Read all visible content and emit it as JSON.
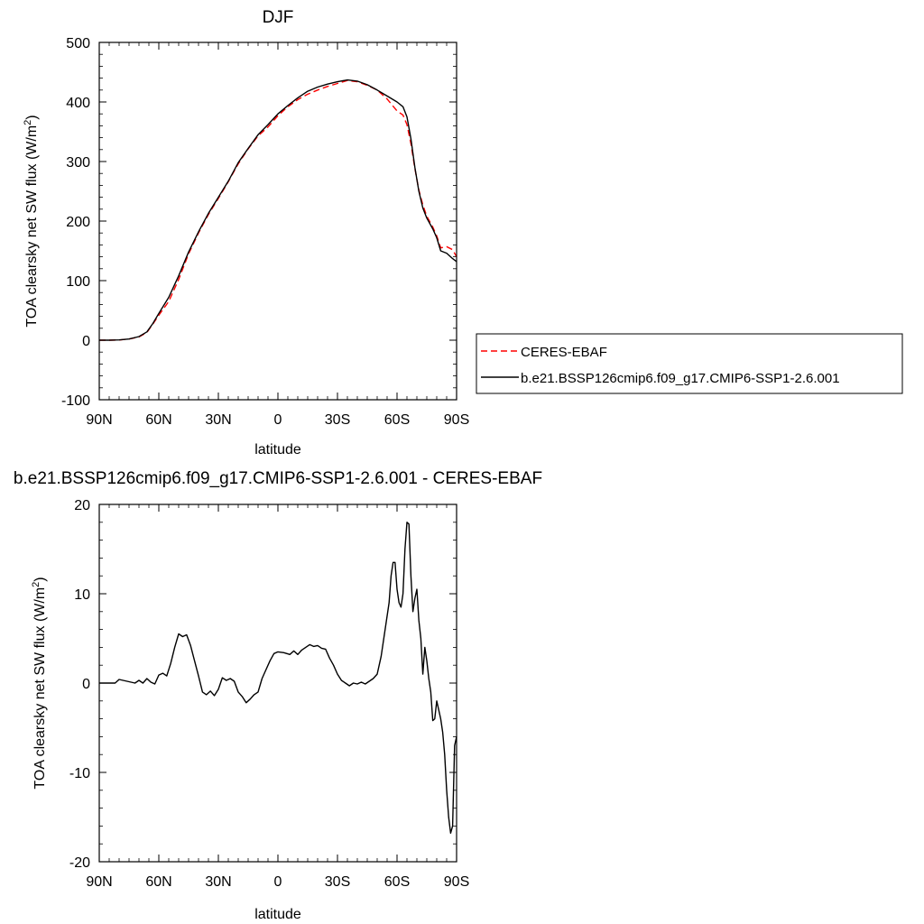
{
  "chart_data": [
    {
      "type": "line",
      "title": "DJF",
      "xlabel": "latitude",
      "ylabel": "TOA clearsky net SW flux (W/m",
      "ylabel_sup": "2",
      "ylabel_close": ")",
      "xlim": [
        90,
        -90
      ],
      "ylim": [
        -100,
        500
      ],
      "xticks": [
        {
          "value": 90,
          "label": "90N"
        },
        {
          "value": 60,
          "label": "60N"
        },
        {
          "value": 30,
          "label": "30N"
        },
        {
          "value": 0,
          "label": "0"
        },
        {
          "value": -30,
          "label": "30S"
        },
        {
          "value": -60,
          "label": "60S"
        },
        {
          "value": -90,
          "label": "90S"
        }
      ],
      "yticks": [
        -100,
        0,
        100,
        200,
        300,
        400,
        500
      ],
      "legend": {
        "placement": "right",
        "entries": [
          {
            "name": "CERES-EBAF",
            "color": "#ff0000",
            "dashed": true
          },
          {
            "name": "b.e21.BSSP126cmip6.f09_g17.CMIP6-SSP1-2.6.001",
            "color": "#000000",
            "dashed": false
          }
        ]
      },
      "series": [
        {
          "name": "b.e21.BSSP126cmip6.f09_g17.CMIP6-SSP1-2.6.001",
          "color": "#000000",
          "dashed": false,
          "points": [
            [
              90,
              0
            ],
            [
              85,
              0
            ],
            [
              80,
              0.5
            ],
            [
              75,
              2
            ],
            [
              70,
              6
            ],
            [
              66,
              14
            ],
            [
              63,
              28
            ],
            [
              60,
              45
            ],
            [
              55,
              72
            ],
            [
              50,
              108
            ],
            [
              45,
              148
            ],
            [
              40,
              182
            ],
            [
              35,
              213
            ],
            [
              30,
              240
            ],
            [
              25,
              267
            ],
            [
              20,
              298
            ],
            [
              15,
              322
            ],
            [
              10,
              345
            ],
            [
              5,
              362
            ],
            [
              0,
              380
            ],
            [
              -5,
              394
            ],
            [
              -10,
              407
            ],
            [
              -15,
              418
            ],
            [
              -20,
              425
            ],
            [
              -25,
              430
            ],
            [
              -30,
              434
            ],
            [
              -35,
              437
            ],
            [
              -40,
              435
            ],
            [
              -45,
              429
            ],
            [
              -50,
              420
            ],
            [
              -55,
              410
            ],
            [
              -60,
              400
            ],
            [
              -63,
              392
            ],
            [
              -65,
              375
            ],
            [
              -67,
              338
            ],
            [
              -69,
              290
            ],
            [
              -71,
              250
            ],
            [
              -73,
              222
            ],
            [
              -75,
              205
            ],
            [
              -78,
              187
            ],
            [
              -80,
              172
            ],
            [
              -82,
              150
            ],
            [
              -85,
              146
            ],
            [
              -88,
              137
            ],
            [
              -90,
              132
            ]
          ]
        },
        {
          "name": "CERES-EBAF",
          "color": "#ff0000",
          "dashed": true,
          "points": [
            [
              90,
              0
            ],
            [
              85,
              0
            ],
            [
              80,
              0.3
            ],
            [
              75,
              2
            ],
            [
              70,
              5.5
            ],
            [
              66,
              13
            ],
            [
              63,
              27
            ],
            [
              60,
              42
            ],
            [
              55,
              65
            ],
            [
              50,
              102
            ],
            [
              45,
              145
            ],
            [
              40,
              180
            ],
            [
              35,
              211
            ],
            [
              30,
              238
            ],
            [
              25,
              266
            ],
            [
              20,
              296
            ],
            [
              15,
              321
            ],
            [
              10,
              343
            ],
            [
              5,
              358
            ],
            [
              0,
              377
            ],
            [
              -5,
              392
            ],
            [
              -10,
              404
            ],
            [
              -15,
              413
            ],
            [
              -20,
              420
            ],
            [
              -25,
              426
            ],
            [
              -30,
              431
            ],
            [
              -35,
              436
            ],
            [
              -40,
              434
            ],
            [
              -45,
              428
            ],
            [
              -50,
              420
            ],
            [
              -55,
              405
            ],
            [
              -60,
              385
            ],
            [
              -63,
              378
            ],
            [
              -65,
              362
            ],
            [
              -67,
              330
            ],
            [
              -69,
              288
            ],
            [
              -71,
              252
            ],
            [
              -73,
              227
            ],
            [
              -75,
              208
            ],
            [
              -78,
              190
            ],
            [
              -80,
              175
            ],
            [
              -82,
              155
            ],
            [
              -85,
              157
            ],
            [
              -88,
              152
            ],
            [
              -90,
              140
            ]
          ]
        }
      ]
    },
    {
      "type": "line",
      "title": "b.e21.BSSP126cmip6.f09_g17.CMIP6-SSP1-2.6.001 - CERES-EBAF",
      "xlabel": "latitude",
      "ylabel": "TOA clearsky net SW flux (W/m",
      "ylabel_sup": "2",
      "ylabel_close": ")",
      "xlim": [
        90,
        -90
      ],
      "ylim": [
        -20,
        20
      ],
      "xticks": [
        {
          "value": 90,
          "label": "90N"
        },
        {
          "value": 60,
          "label": "60N"
        },
        {
          "value": 30,
          "label": "30N"
        },
        {
          "value": 0,
          "label": "0"
        },
        {
          "value": -30,
          "label": "30S"
        },
        {
          "value": -60,
          "label": "60S"
        },
        {
          "value": -90,
          "label": "90S"
        }
      ],
      "yticks": [
        -20,
        -10,
        0,
        10,
        20
      ],
      "series": [
        {
          "name": "b.e21.BSSP126cmip6.f09_g17.CMIP6-SSP1-2.6.001 - CERES-EBAF",
          "color": "#000000",
          "dashed": false,
          "points": [
            [
              90,
              0
            ],
            [
              82,
              0
            ],
            [
              80,
              0.4
            ],
            [
              76,
              0.2
            ],
            [
              72,
              0
            ],
            [
              70,
              0.3
            ],
            [
              68,
              0
            ],
            [
              66,
              0.5
            ],
            [
              64,
              0.1
            ],
            [
              62,
              -0.1
            ],
            [
              60,
              0.9
            ],
            [
              58,
              1.1
            ],
            [
              56,
              0.8
            ],
            [
              54,
              2.2
            ],
            [
              52,
              4.0
            ],
            [
              50,
              5.5
            ],
            [
              48,
              5.2
            ],
            [
              46,
              5.4
            ],
            [
              44,
              4.2
            ],
            [
              42,
              2.5
            ],
            [
              40,
              0.8
            ],
            [
              38,
              -1.0
            ],
            [
              36,
              -1.3
            ],
            [
              34,
              -0.9
            ],
            [
              32,
              -1.4
            ],
            [
              30,
              -0.7
            ],
            [
              28,
              0.6
            ],
            [
              26,
              0.3
            ],
            [
              24,
              0.5
            ],
            [
              22,
              0.2
            ],
            [
              20,
              -1.0
            ],
            [
              18,
              -1.5
            ],
            [
              16,
              -2.2
            ],
            [
              14,
              -1.8
            ],
            [
              12,
              -1.3
            ],
            [
              10,
              -1.0
            ],
            [
              8,
              0.5
            ],
            [
              6,
              1.5
            ],
            [
              4,
              2.5
            ],
            [
              2,
              3.3
            ],
            [
              0,
              3.5
            ],
            [
              -3,
              3.4
            ],
            [
              -6,
              3.2
            ],
            [
              -8,
              3.6
            ],
            [
              -10,
              3.2
            ],
            [
              -12,
              3.7
            ],
            [
              -14,
              4.0
            ],
            [
              -16,
              4.3
            ],
            [
              -18,
              4.1
            ],
            [
              -20,
              4.2
            ],
            [
              -22,
              3.9
            ],
            [
              -24,
              3.8
            ],
            [
              -26,
              2.8
            ],
            [
              -28,
              2.0
            ],
            [
              -30,
              1.0
            ],
            [
              -32,
              0.3
            ],
            [
              -34,
              0.0
            ],
            [
              -36,
              -0.3
            ],
            [
              -38,
              0.0
            ],
            [
              -40,
              -0.1
            ],
            [
              -42,
              0.1
            ],
            [
              -44,
              -0.1
            ],
            [
              -46,
              0.2
            ],
            [
              -48,
              0.5
            ],
            [
              -50,
              1.0
            ],
            [
              -52,
              3.0
            ],
            [
              -54,
              6.0
            ],
            [
              -56,
              9.0
            ],
            [
              -57,
              12.0
            ],
            [
              -58,
              13.5
            ],
            [
              -59,
              13.5
            ],
            [
              -60,
              10.5
            ],
            [
              -61,
              9.0
            ],
            [
              -62,
              8.5
            ],
            [
              -63,
              10.0
            ],
            [
              -64,
              15.0
            ],
            [
              -65,
              18.0
            ],
            [
              -66,
              17.8
            ],
            [
              -67,
              12.0
            ],
            [
              -68,
              8.0
            ],
            [
              -69,
              9.5
            ],
            [
              -70,
              10.5
            ],
            [
              -71,
              7.0
            ],
            [
              -72,
              5.0
            ],
            [
              -73,
              1.0
            ],
            [
              -74,
              4.0
            ],
            [
              -75,
              2.5
            ],
            [
              -76,
              0.5
            ],
            [
              -77,
              -1.0
            ],
            [
              -78,
              -4.2
            ],
            [
              -79,
              -4.0
            ],
            [
              -80,
              -2.0
            ],
            [
              -81,
              -3.0
            ],
            [
              -82,
              -4.0
            ],
            [
              -83,
              -5.5
            ],
            [
              -84,
              -8.0
            ],
            [
              -85,
              -12.0
            ],
            [
              -86,
              -15.0
            ],
            [
              -87,
              -16.8
            ],
            [
              -88,
              -16.0
            ],
            [
              -89,
              -7.0
            ],
            [
              -90,
              -6.0
            ]
          ]
        }
      ]
    }
  ]
}
